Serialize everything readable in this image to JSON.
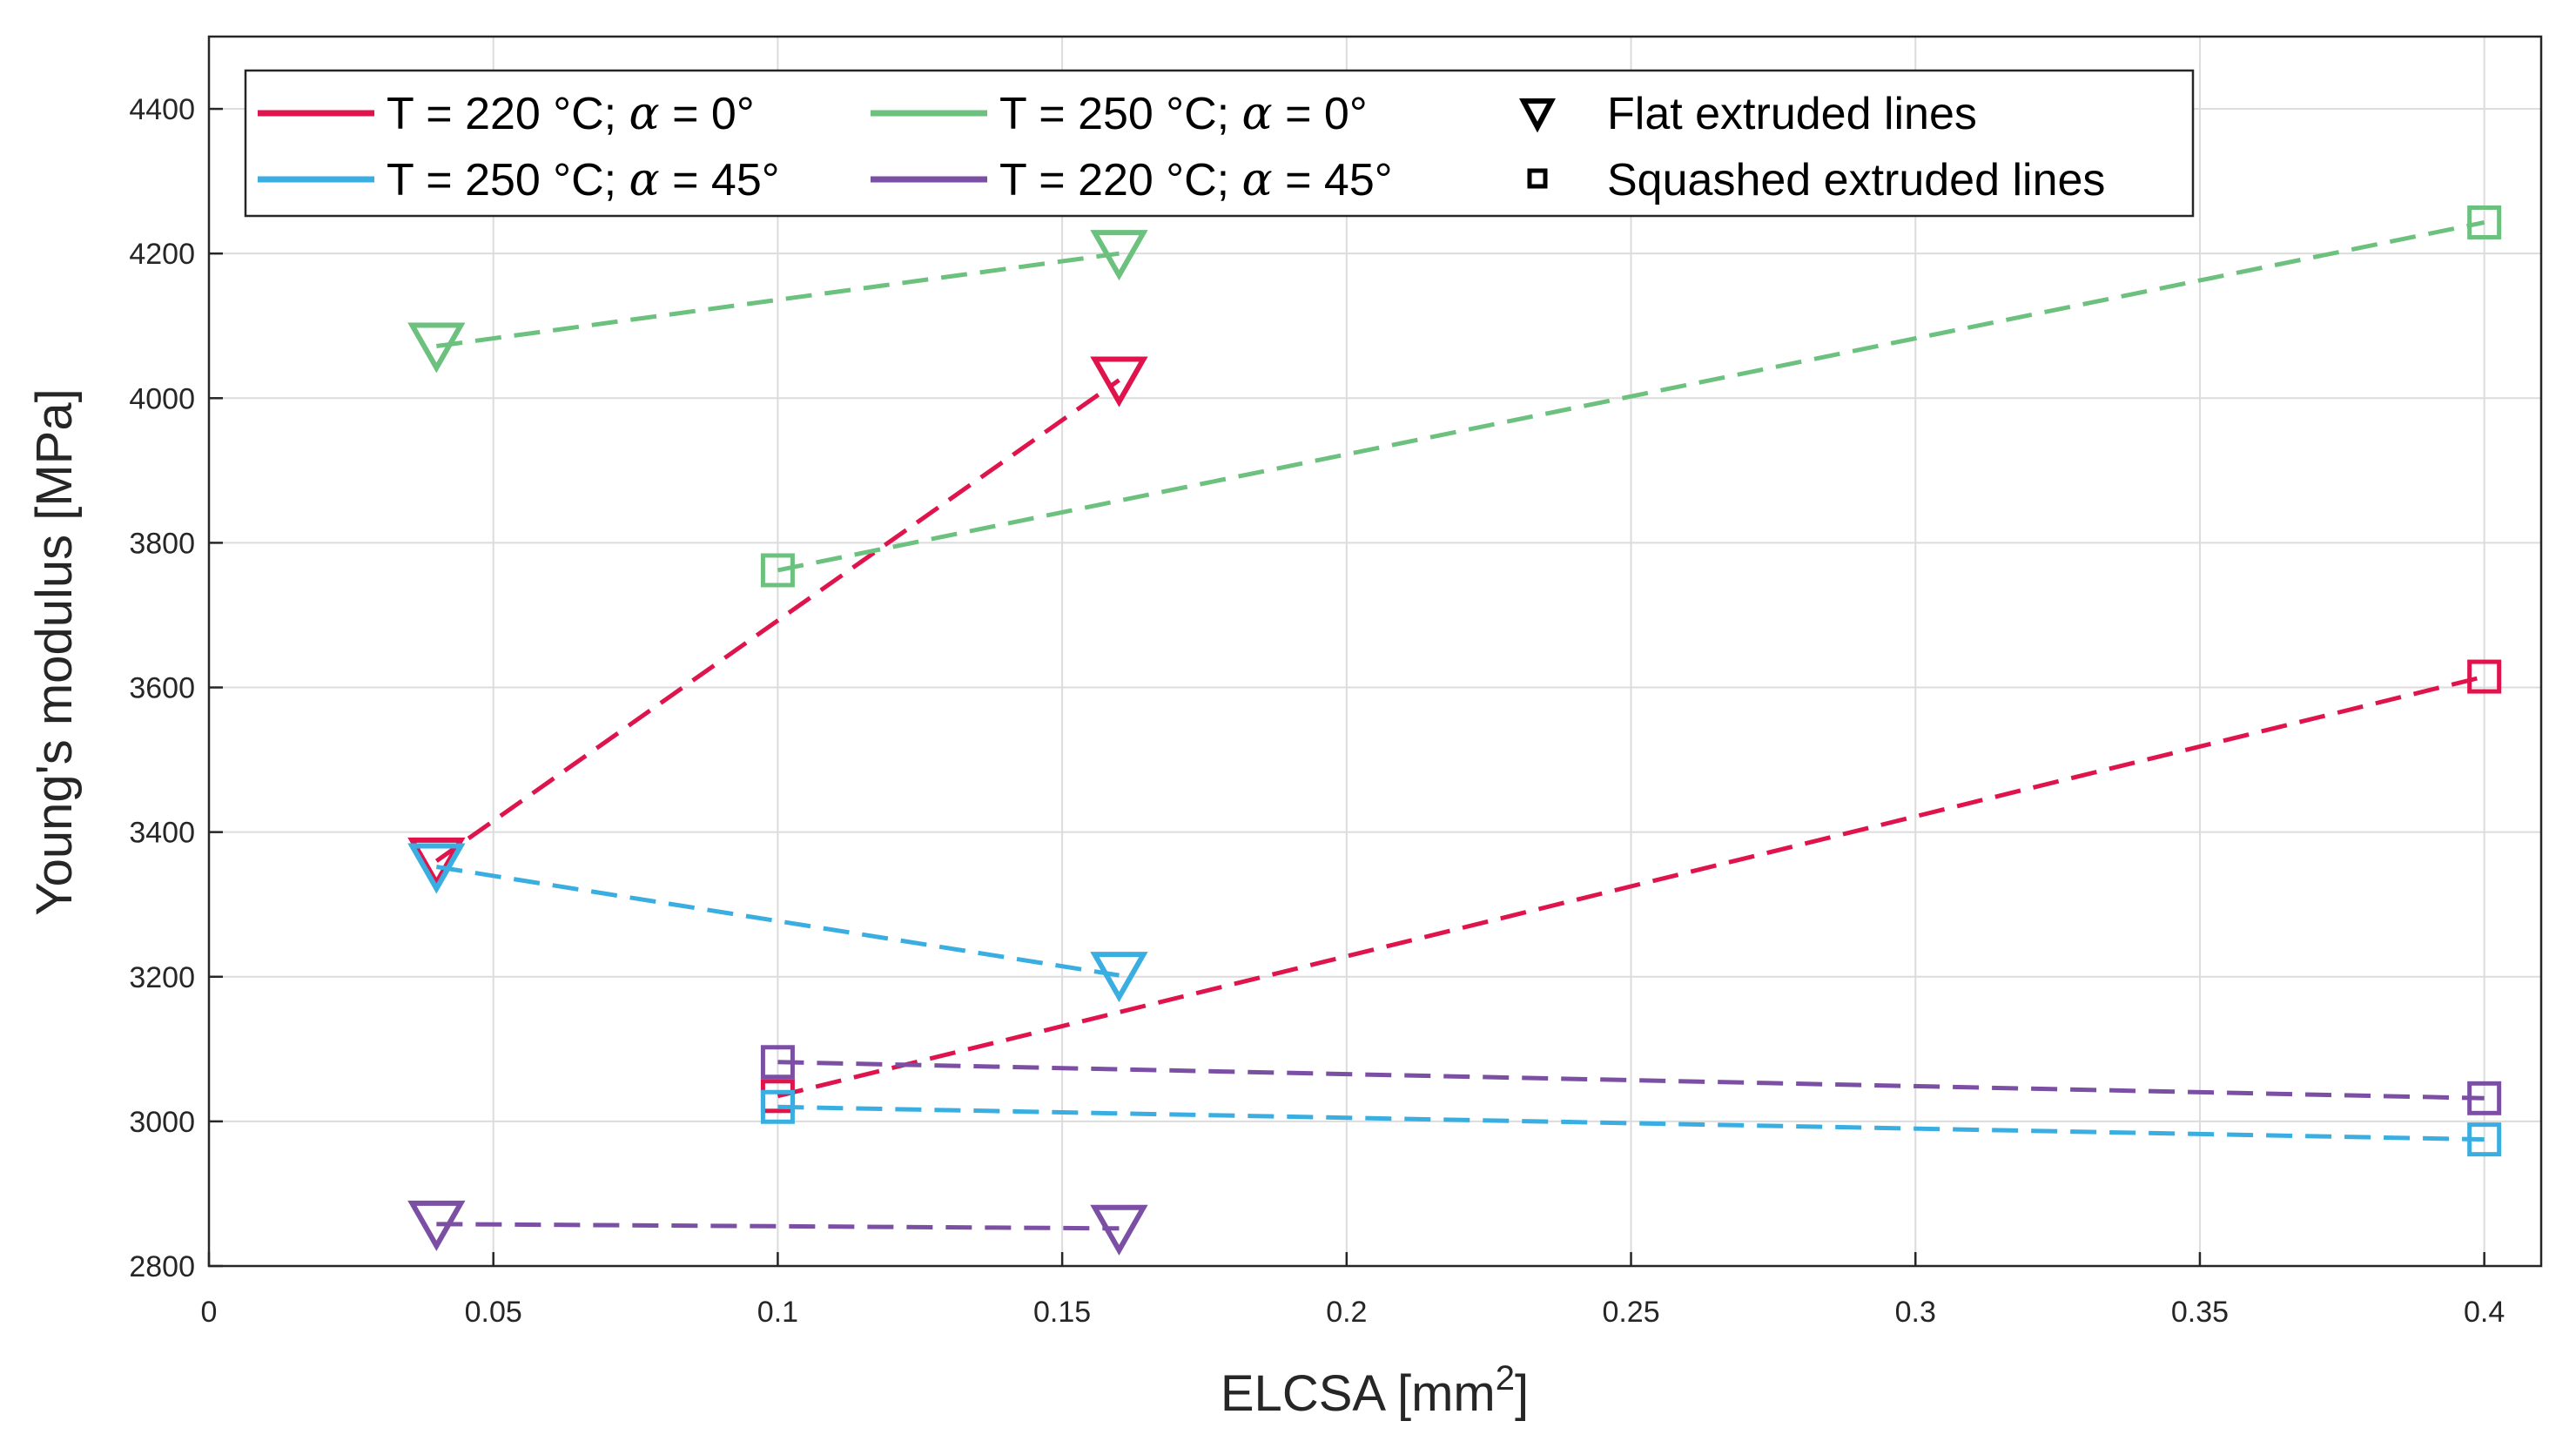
{
  "chart_data": {
    "type": "scatter",
    "xlabel": "ELCSA [mm",
    "xlabel_superscript": "2",
    "xlabel_suffix": "]",
    "ylabel": "Young's modulus [MPa]",
    "xlim": [
      0,
      0.41
    ],
    "ylim": [
      2800,
      4500
    ],
    "grid": true,
    "x_ticks": [
      0,
      0.05,
      0.1,
      0.15,
      0.2,
      0.25,
      0.3,
      0.35,
      0.4
    ],
    "x_tick_labels": [
      "0",
      "0.05",
      "0.1",
      "0.15",
      "0.2",
      "0.25",
      "0.3",
      "0.35",
      "0.4"
    ],
    "y_ticks": [
      2800,
      3000,
      3200,
      3400,
      3600,
      3800,
      4000,
      4200,
      4400
    ],
    "y_tick_labels": [
      "2800",
      "3000",
      "3200",
      "3400",
      "3600",
      "3800",
      "4000",
      "4200",
      "4400"
    ],
    "legend_position": "top-left",
    "series": [
      {
        "name": "T = 220 °C; α = 0°",
        "label_main": "T = 220 °C; ",
        "label_alpha": "α",
        "label_tail": " = 0°",
        "color": "#e0144c",
        "flat": [
          {
            "x": 0.04,
            "y": 3360
          },
          {
            "x": 0.16,
            "y": 4025
          }
        ],
        "squashed": [
          {
            "x": 0.1,
            "y": 3035
          },
          {
            "x": 0.4,
            "y": 3615
          }
        ]
      },
      {
        "name": "T = 250 °C; α = 45°",
        "label_main": "T = 250 °C; ",
        "label_alpha": "α",
        "label_tail": " = 45°",
        "color": "#3aaee0",
        "flat": [
          {
            "x": 0.04,
            "y": 3352
          },
          {
            "x": 0.16,
            "y": 3202
          }
        ],
        "squashed": [
          {
            "x": 0.1,
            "y": 3020
          },
          {
            "x": 0.4,
            "y": 2975
          }
        ]
      },
      {
        "name": "T = 250 °C; α = 0°",
        "label_main": "T = 250 °C; ",
        "label_alpha": "α",
        "label_tail": " = 0°",
        "color": "#6cc17e",
        "flat": [
          {
            "x": 0.04,
            "y": 4072
          },
          {
            "x": 0.16,
            "y": 4200
          }
        ],
        "squashed": [
          {
            "x": 0.1,
            "y": 3762
          },
          {
            "x": 0.4,
            "y": 4243
          }
        ]
      },
      {
        "name": "T = 220 °C; α = 45°",
        "label_main": "T = 220 °C; ",
        "label_alpha": "α",
        "label_tail": " = 45°",
        "color": "#7b4fa3",
        "flat": [
          {
            "x": 0.04,
            "y": 2858
          },
          {
            "x": 0.16,
            "y": 2852
          }
        ],
        "squashed": [
          {
            "x": 0.1,
            "y": 3082
          },
          {
            "x": 0.4,
            "y": 3032
          }
        ]
      }
    ],
    "marker_legend": [
      {
        "shape": "triangle-down",
        "label": "Flat extruded lines"
      },
      {
        "shape": "square",
        "label": "Squashed extruded lines"
      }
    ]
  }
}
